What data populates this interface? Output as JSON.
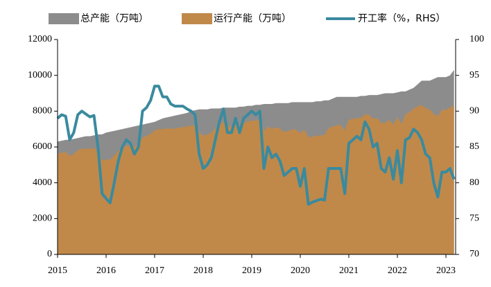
{
  "chart_data": {
    "type": "area",
    "categories": [
      "2015",
      null,
      null,
      null,
      null,
      null,
      null,
      null,
      null,
      null,
      null,
      null,
      "2016",
      null,
      null,
      null,
      null,
      null,
      null,
      null,
      null,
      null,
      null,
      null,
      "2017",
      null,
      null,
      null,
      null,
      null,
      null,
      null,
      null,
      null,
      null,
      null,
      "2018",
      null,
      null,
      null,
      null,
      null,
      null,
      null,
      null,
      null,
      null,
      null,
      "2019",
      null,
      null,
      null,
      null,
      null,
      null,
      null,
      null,
      null,
      null,
      null,
      "2020",
      null,
      null,
      null,
      null,
      null,
      null,
      null,
      null,
      null,
      null,
      null,
      "2021",
      null,
      null,
      null,
      null,
      null,
      null,
      null,
      null,
      null,
      null,
      null,
      "2022",
      null,
      null,
      null,
      null,
      null,
      null,
      null,
      null,
      null,
      null,
      null,
      "2023",
      null,
      null
    ],
    "series": [
      {
        "name": "总产能（万吨）",
        "color": "#8c8c8c",
        "values": [
          6300,
          6350,
          6400,
          6400,
          6450,
          6500,
          6550,
          6600,
          6600,
          6650,
          6700,
          6700,
          6800,
          6850,
          6900,
          6950,
          7000,
          7050,
          7100,
          7150,
          7200,
          7250,
          7300,
          7350,
          7400,
          7500,
          7600,
          7650,
          7700,
          7750,
          7800,
          7850,
          7900,
          8000,
          8050,
          8100,
          8100,
          8100,
          8150,
          8150,
          8150,
          8200,
          8200,
          8200,
          8200,
          8250,
          8250,
          8300,
          8300,
          8350,
          8350,
          8400,
          8400,
          8400,
          8450,
          8450,
          8450,
          8450,
          8500,
          8500,
          8500,
          8500,
          8500,
          8500,
          8550,
          8550,
          8600,
          8600,
          8700,
          8800,
          8800,
          8800,
          8800,
          8800,
          8800,
          8850,
          8850,
          8900,
          8900,
          8900,
          8950,
          9000,
          9000,
          9000,
          9050,
          9100,
          9100,
          9200,
          9300,
          9500,
          9700,
          9700,
          9700,
          9800,
          9900,
          9900,
          9900,
          10000,
          10300
        ]
      },
      {
        "name": "运行产能（万吨）",
        "color": "#c0894a",
        "values": [
          5610,
          5680,
          5720,
          5500,
          5610,
          5820,
          5900,
          5910,
          5890,
          5950,
          5700,
          5260,
          5290,
          5290,
          5520,
          5770,
          5950,
          6060,
          6070,
          6010,
          6120,
          6530,
          6610,
          6730,
          6920,
          7010,
          6990,
          7040,
          7010,
          7030,
          7070,
          7120,
          7130,
          7200,
          7200,
          6800,
          6640,
          6680,
          6810,
          7010,
          7210,
          7400,
          7130,
          7130,
          7300,
          7180,
          7340,
          7430,
          7470,
          7470,
          7520,
          6890,
          7140,
          7010,
          7100,
          7010,
          6840,
          6890,
          6970,
          6970,
          6760,
          6970,
          6550,
          6570,
          6630,
          6640,
          6670,
          7050,
          7130,
          7220,
          7220,
          6910,
          7520,
          7570,
          7610,
          7610,
          7830,
          7790,
          7570,
          7610,
          7340,
          7340,
          7520,
          7250,
          7650,
          7280,
          7830,
          7940,
          8140,
          8270,
          8340,
          8150,
          8100,
          7840,
          7720,
          8070,
          8070,
          8200,
          8290
        ]
      },
      {
        "name": "开工率（%，RHS）",
        "type": "line",
        "axis": "y2",
        "color": "#3a8a9e",
        "values": [
          89,
          89.5,
          89.3,
          86,
          87,
          89.5,
          90,
          89.6,
          89.2,
          89.4,
          85,
          78.5,
          77.8,
          77.2,
          80,
          83,
          85,
          86,
          85.5,
          84,
          85,
          90,
          90.5,
          91.5,
          93.5,
          93.5,
          92,
          92,
          91,
          90.7,
          90.7,
          90.7,
          90.3,
          90,
          89.5,
          84,
          82,
          82.5,
          83.5,
          86,
          88.5,
          90.3,
          87,
          87,
          89,
          87,
          89,
          89.5,
          90,
          89.5,
          90,
          82,
          85,
          83.5,
          84,
          83,
          81,
          81.5,
          82,
          82,
          79.5,
          82,
          77,
          77.3,
          77.5,
          77.7,
          77.6,
          82,
          82,
          82,
          82,
          78.5,
          85.5,
          86,
          86.5,
          86,
          88.5,
          87.5,
          85,
          85.5,
          82,
          81.5,
          83.5,
          80.5,
          84.5,
          80,
          86,
          86.3,
          87.5,
          87,
          86,
          84,
          83.5,
          80,
          78,
          81.5,
          81.5,
          82,
          80.5
        ]
      }
    ],
    "ylim": [
      0,
      12000
    ],
    "yticks": [
      0,
      2000,
      4000,
      6000,
      8000,
      10000,
      12000
    ],
    "y2lim": [
      70,
      100
    ],
    "y2ticks": [
      70,
      75,
      80,
      85,
      90,
      95,
      100
    ]
  }
}
